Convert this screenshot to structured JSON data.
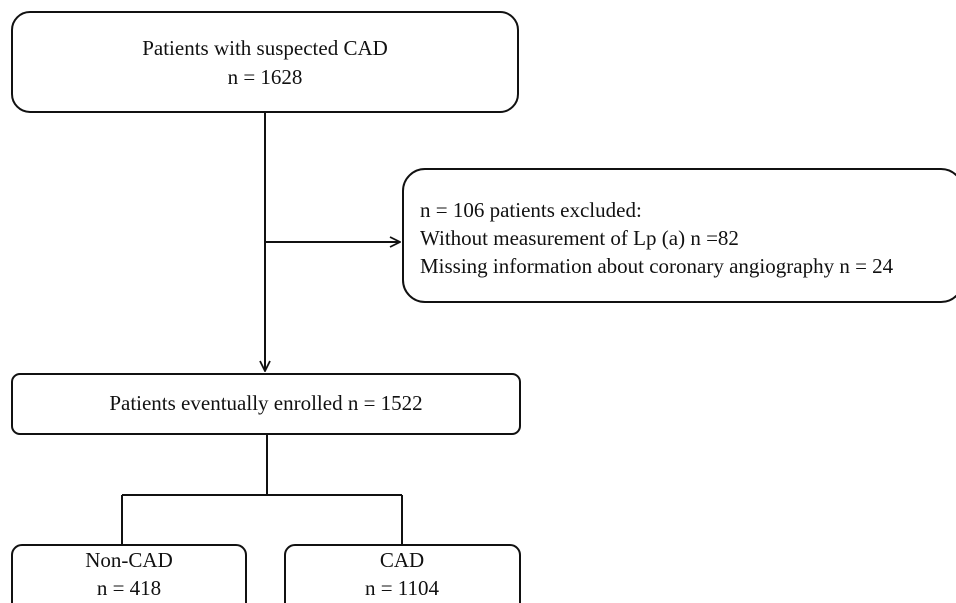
{
  "nodes": [
    {
      "lines": [
        "Patients with suspected CAD",
        "n = 1628"
      ]
    },
    {
      "lines": [
        "n = 106 patients excluded:",
        "Without measurement of Lp (a) n =82",
        "Missing information about coronary angiography n = 24"
      ]
    },
    {
      "lines": [
        "Patients eventually enrolled n = 1522"
      ]
    },
    {
      "lines": [
        "Non-CAD",
        "n = 418"
      ]
    },
    {
      "lines": [
        "CAD",
        "n = 1104"
      ]
    }
  ]
}
